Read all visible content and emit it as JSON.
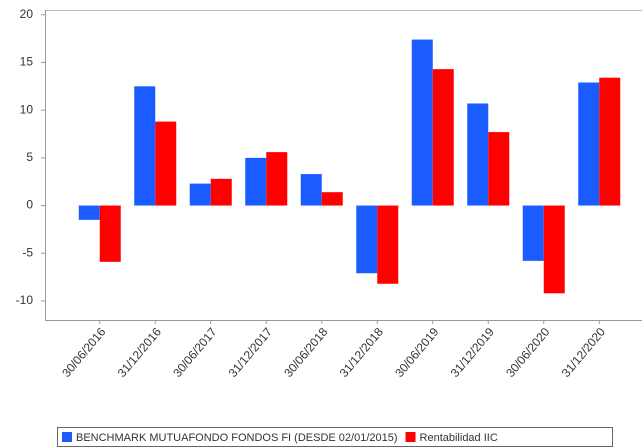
{
  "chart_data": {
    "type": "bar",
    "categories": [
      "30/06/2016",
      "31/12/2016",
      "30/06/2017",
      "31/12/2017",
      "30/06/2018",
      "31/12/2018",
      "30/06/2019",
      "31/12/2019",
      "30/06/2020",
      "31/12/2020"
    ],
    "series": [
      {
        "name": "BENCHMARK MUTUAFONDO FONDOS FI (DESDE 02/01/2015)",
        "color": "#1a5cff",
        "values": [
          -1.5,
          12.5,
          2.3,
          5.0,
          3.3,
          -7.1,
          17.4,
          10.7,
          -5.8,
          12.9
        ]
      },
      {
        "name": "Rentabilidad IIC",
        "color": "#ff0000",
        "values": [
          -5.9,
          8.8,
          2.8,
          5.6,
          1.4,
          -8.2,
          14.3,
          7.7,
          -9.2,
          13.4
        ]
      }
    ],
    "ylim": [
      -12,
      20.5
    ],
    "yticks": [
      -10,
      -5,
      0,
      5,
      10,
      15,
      20
    ],
    "grid": false
  }
}
